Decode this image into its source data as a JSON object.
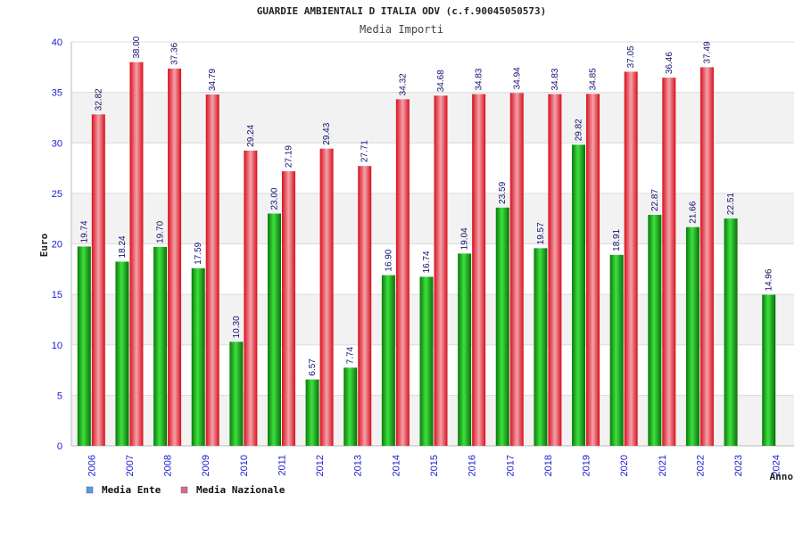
{
  "chart_data": {
    "type": "bar",
    "title": "GUARDIE AMBIENTALI D ITALIA ODV (c.f.90045050573)",
    "subtitle": "Media Importi",
    "xlabel": "Anno",
    "ylabel": "Euro",
    "ylim": [
      0,
      40
    ],
    "yticks": [
      0,
      5,
      10,
      15,
      20,
      25,
      30,
      35,
      40
    ],
    "grid": true,
    "legend_position": "bottom-left",
    "categories": [
      "2006",
      "2007",
      "2008",
      "2009",
      "2010",
      "2011",
      "2012",
      "2013",
      "2014",
      "2015",
      "2016",
      "2017",
      "2018",
      "2019",
      "2020",
      "2021",
      "2022",
      "2023",
      "2024"
    ],
    "series": [
      {
        "name": "Media Ente",
        "color": "#22bb22",
        "legend_color": "#5599ee",
        "values": [
          19.74,
          18.24,
          19.7,
          17.59,
          10.3,
          23.0,
          6.57,
          7.74,
          16.9,
          16.74,
          19.04,
          23.59,
          19.57,
          29.82,
          18.91,
          22.87,
          21.66,
          22.51,
          14.96
        ],
        "labels": [
          "19.74",
          "18.24",
          "19.70",
          "17.59",
          "10.30",
          "23.00",
          "6.57",
          "7.74",
          "16.90",
          "16.74",
          "19.04",
          "23.59",
          "19.57",
          "29.82",
          "18.91",
          "22.87",
          "21.66",
          "22.51",
          "14.96"
        ]
      },
      {
        "name": "Media Nazionale",
        "color": "#ee2233",
        "legend_color": "#dd6699",
        "values": [
          32.82,
          38.0,
          37.36,
          34.79,
          29.24,
          27.19,
          29.43,
          27.71,
          34.32,
          34.68,
          34.83,
          34.94,
          34.83,
          34.85,
          37.05,
          36.46,
          37.49,
          null,
          null
        ],
        "labels": [
          "32.82",
          "38.00",
          "37.36",
          "34.79",
          "29.24",
          "27.19",
          "29.43",
          "27.71",
          "34.32",
          "34.68",
          "34.83",
          "34.94",
          "34.83",
          "34.85",
          "37.05",
          "36.46",
          "37.49",
          null,
          null
        ]
      }
    ]
  }
}
